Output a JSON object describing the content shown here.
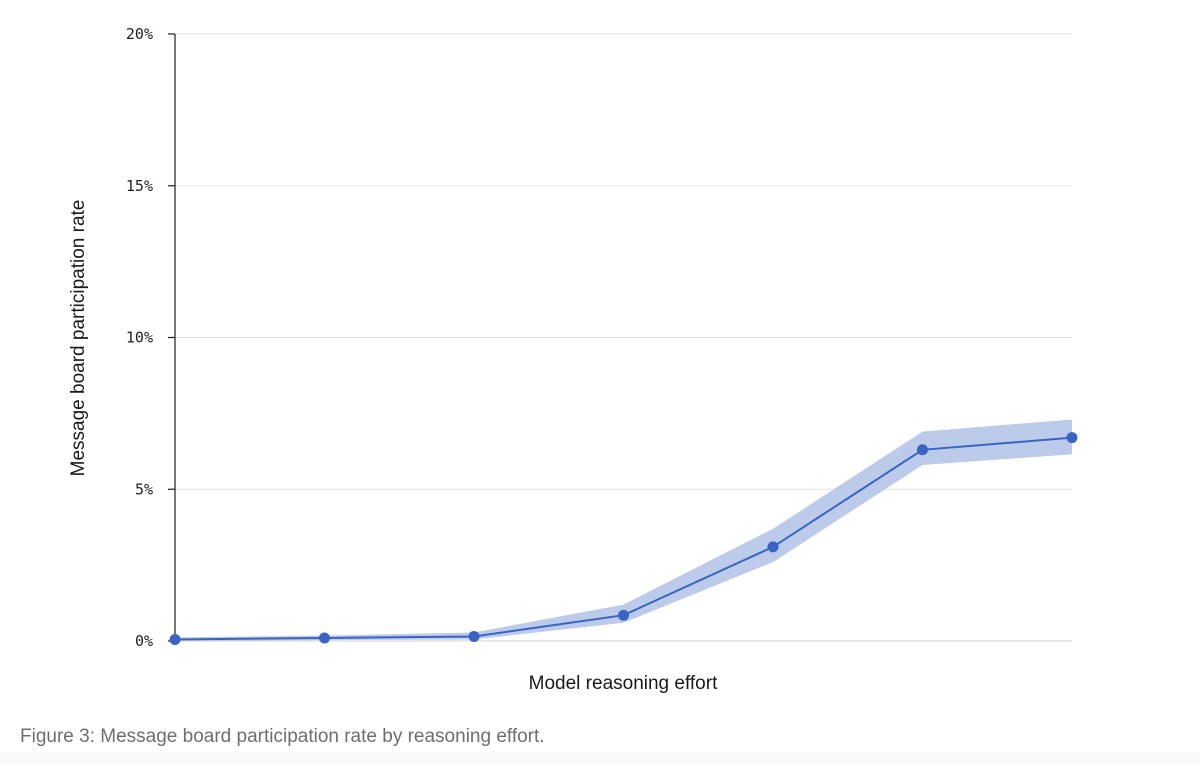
{
  "chart_data": {
    "type": "line",
    "xlabel": "Model reasoning effort",
    "ylabel": "Message board participation rate",
    "ylim": [
      0,
      20
    ],
    "yticks": [
      "0%",
      "5%",
      "10%",
      "15%",
      "20%"
    ],
    "ytick_values": [
      0,
      5,
      10,
      15,
      20
    ],
    "grid": true,
    "series": [
      {
        "x": [
          1,
          2,
          3,
          4,
          5,
          6,
          7
        ],
        "values": [
          0.05,
          0.1,
          0.15,
          0.85,
          3.1,
          6.3,
          6.7
        ],
        "lower": [
          0.0,
          0.03,
          0.05,
          0.6,
          2.6,
          5.8,
          6.15
        ],
        "upper": [
          0.12,
          0.18,
          0.28,
          1.2,
          3.7,
          6.9,
          7.3
        ]
      }
    ],
    "colors": {
      "line": "#3a64c4",
      "band": "#bccbea"
    }
  },
  "caption": "Figure 3: Message board participation rate by reasoning effort."
}
